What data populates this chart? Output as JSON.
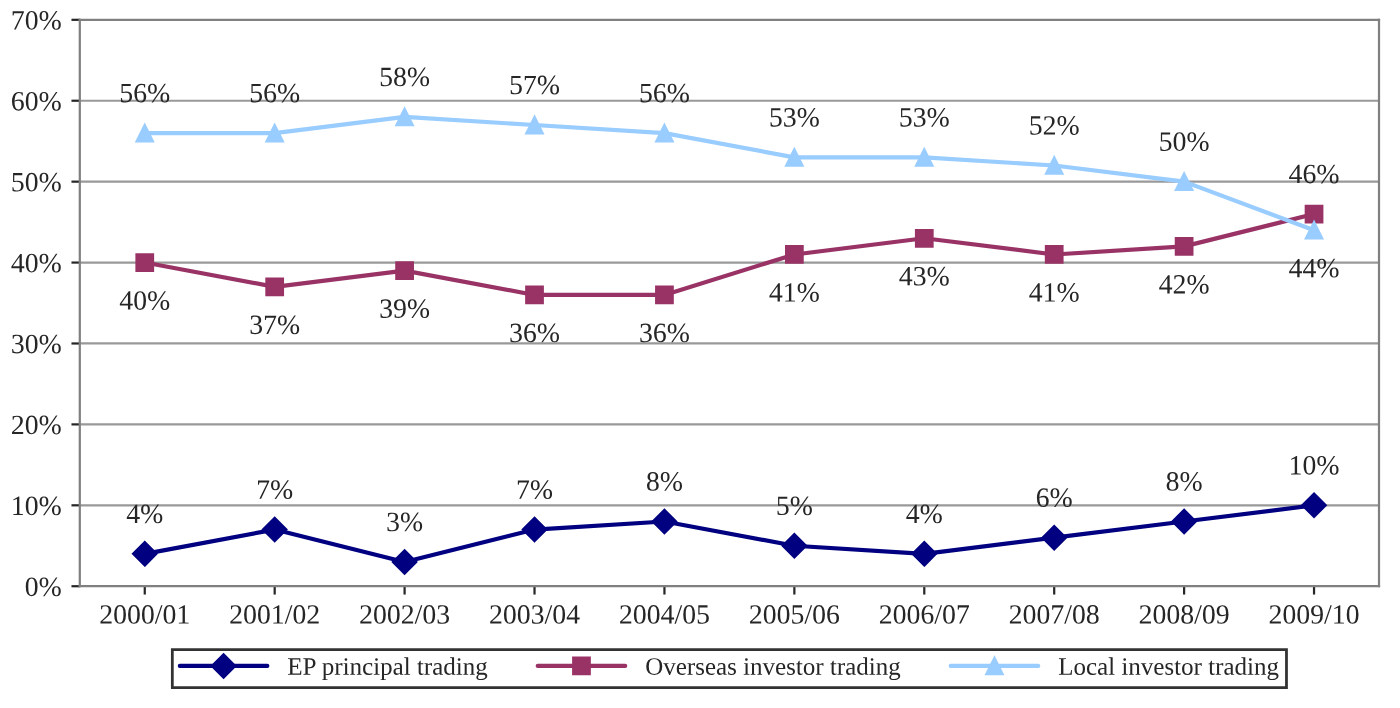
{
  "chart_data": {
    "type": "line",
    "categories": [
      "2000/01",
      "2001/02",
      "2002/03",
      "2003/04",
      "2004/05",
      "2005/06",
      "2006/07",
      "2007/08",
      "2008/09",
      "2009/10"
    ],
    "series": [
      {
        "name": "EP principal trading",
        "color": "#000080",
        "marker": "diamond",
        "values": [
          4,
          7,
          3,
          7,
          8,
          5,
          4,
          6,
          8,
          10
        ],
        "value_labels": [
          "4%",
          "7%",
          "3%",
          "7%",
          "8%",
          "5%",
          "4%",
          "6%",
          "8%",
          "10%"
        ]
      },
      {
        "name": "Overseas investor trading",
        "color": "#993366",
        "marker": "square",
        "values": [
          40,
          37,
          39,
          36,
          36,
          41,
          43,
          41,
          42,
          46
        ],
        "value_labels": [
          "40%",
          "37%",
          "39%",
          "36%",
          "36%",
          "41%",
          "43%",
          "41%",
          "42%",
          "46%"
        ]
      },
      {
        "name": "Local investor trading",
        "color": "#99ccff",
        "marker": "triangle",
        "values": [
          56,
          56,
          58,
          57,
          56,
          53,
          53,
          52,
          50,
          44
        ],
        "value_labels": [
          "56%",
          "56%",
          "58%",
          "57%",
          "56%",
          "53%",
          "53%",
          "52%",
          "50%",
          "44%"
        ]
      }
    ],
    "ylim": [
      0,
      70
    ],
    "yticks": [
      {
        "value": 0,
        "label": "0%"
      },
      {
        "value": 10,
        "label": "10%"
      },
      {
        "value": 20,
        "label": "20%"
      },
      {
        "value": 30,
        "label": "30%"
      },
      {
        "value": 40,
        "label": "40%"
      },
      {
        "value": 50,
        "label": "50%"
      },
      {
        "value": 60,
        "label": "60%"
      },
      {
        "value": 70,
        "label": "70%"
      }
    ],
    "grid": "y",
    "legend": "bottom",
    "line_style": "solid"
  }
}
